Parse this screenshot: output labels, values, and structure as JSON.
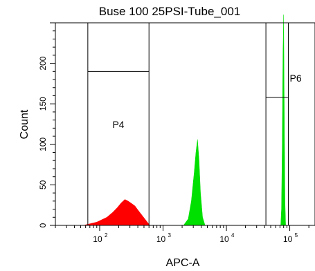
{
  "chart_data": {
    "type": "histogram",
    "title": "Buse 100 25PSI-Tube_001",
    "xlabel": "APC-A",
    "ylabel": "Count",
    "x_scale": "log",
    "xlim": [
      20,
      250000
    ],
    "ylim": [
      0,
      250
    ],
    "y_ticks": [
      "0",
      "50",
      "100",
      "150",
      "200"
    ],
    "x_ticks": [
      {
        "base": "10",
        "exp": "2",
        "value": 100
      },
      {
        "base": "10",
        "exp": "3",
        "value": 1000
      },
      {
        "base": "10",
        "exp": "4",
        "value": 10000
      },
      {
        "base": "10",
        "exp": "5",
        "value": 100000
      }
    ],
    "series": [
      {
        "color": "#ff0000",
        "x": [
          55,
          90,
          130,
          160,
          190,
          220,
          250,
          280,
          320,
          360,
          410,
          470,
          540,
          620
        ],
        "y": [
          0,
          4,
          10,
          16,
          22,
          28,
          32,
          30,
          27,
          24,
          18,
          12,
          6,
          0
        ]
      },
      {
        "color": "#00e000",
        "x": [
          2100,
          2500,
          2800,
          3100,
          3300,
          3500,
          3700,
          3900,
          4200,
          4600
        ],
        "y": [
          0,
          8,
          30,
          65,
          90,
          106,
          80,
          40,
          10,
          0
        ]
      },
      {
        "color": "#00e000",
        "x": [
          72000,
          74000,
          76000,
          78000,
          80000,
          82000,
          84000,
          86000
        ],
        "y": [
          0,
          20,
          100,
          210,
          260,
          130,
          30,
          0
        ]
      }
    ],
    "gates": [
      {
        "label": "P4",
        "x_range": [
          65,
          600
        ],
        "y_level": 190
      },
      {
        "label": "P6",
        "x_range": [
          42000,
          95000
        ],
        "y_level": 158
      }
    ]
  }
}
